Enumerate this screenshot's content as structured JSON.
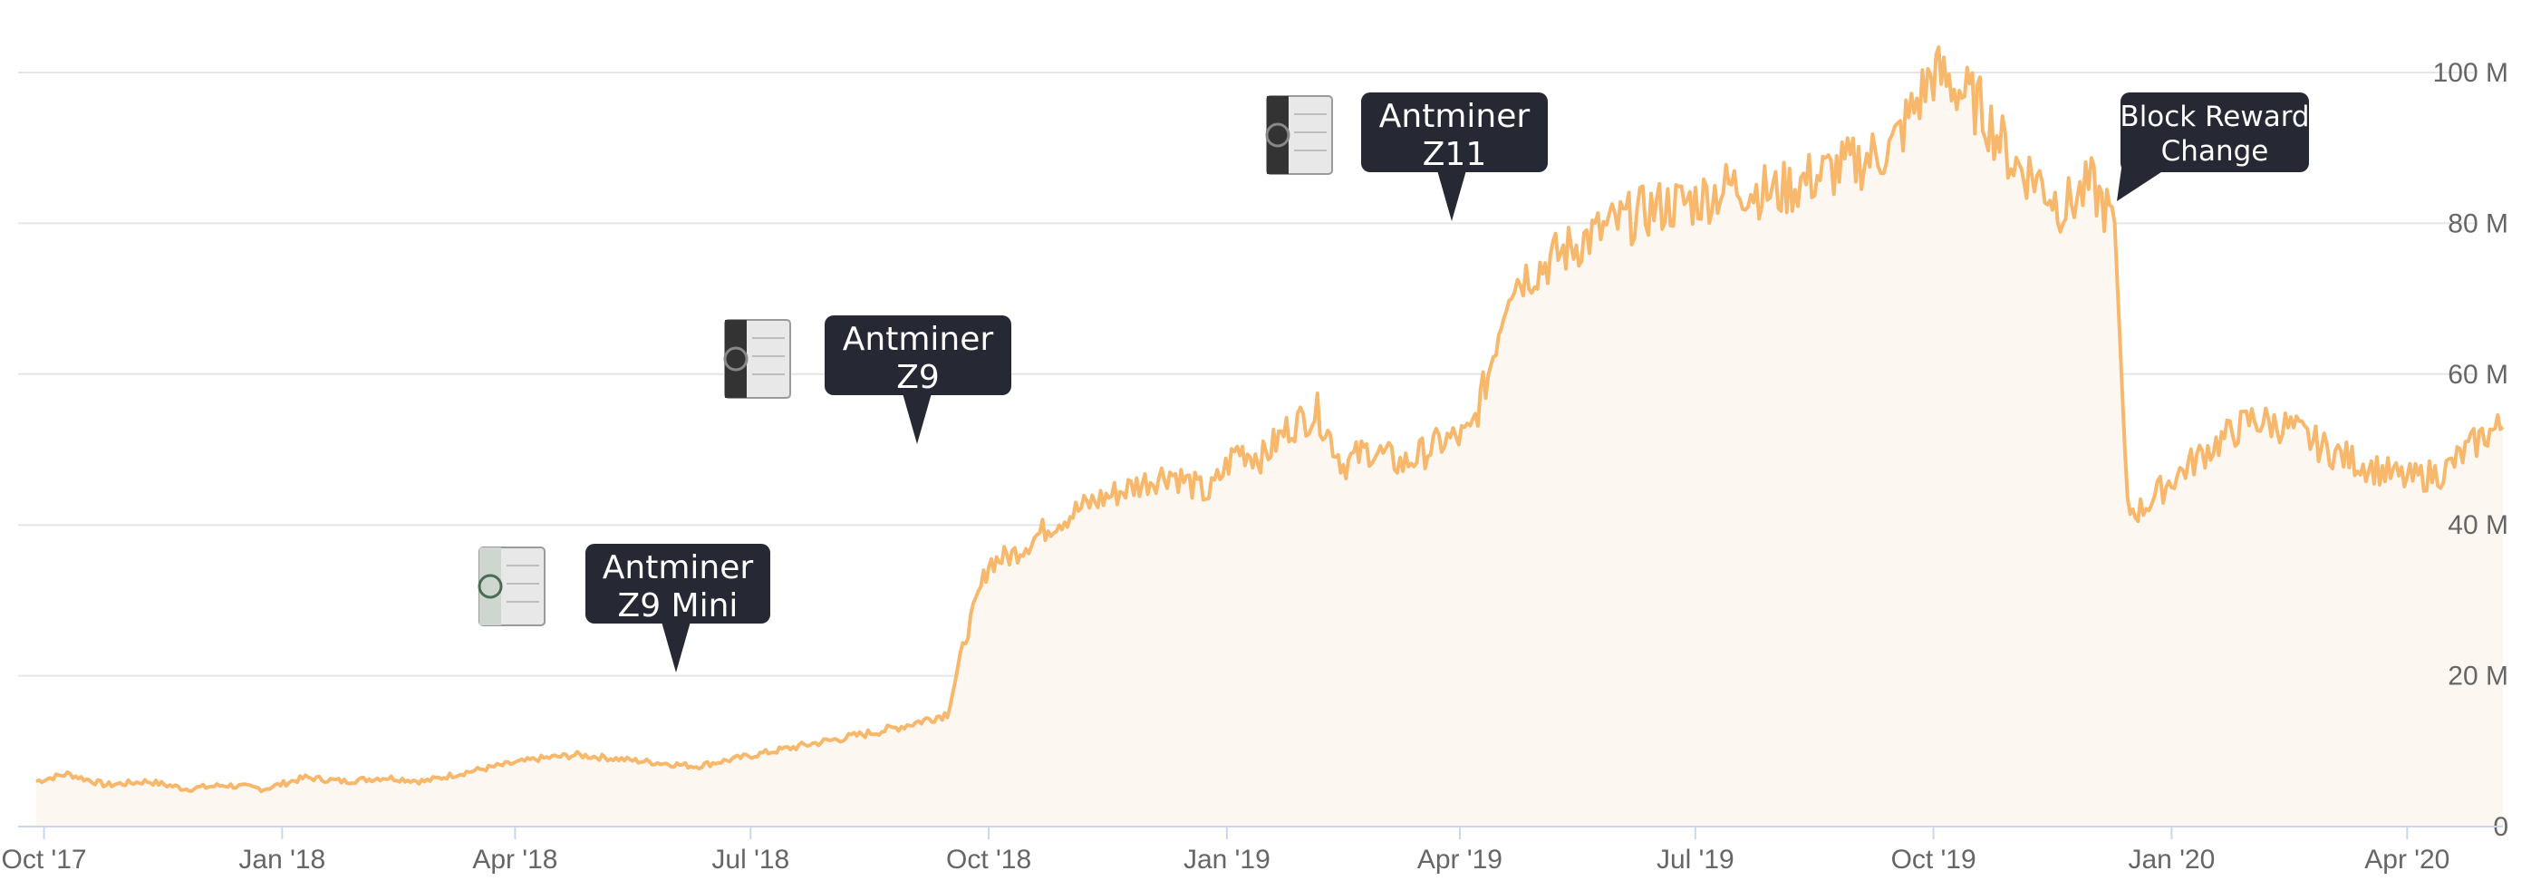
{
  "chart_data": {
    "type": "area",
    "title": "",
    "xlabel": "",
    "ylabel": "",
    "ylim": [
      0,
      100000000
    ],
    "grid": true,
    "line_color": "#f7b86b",
    "fill_color": "#fdf7f2",
    "y_ticks": [
      {
        "value": 0,
        "label": "0"
      },
      {
        "value": 20000000,
        "label": "20 M"
      },
      {
        "value": 40000000,
        "label": "40 M"
      },
      {
        "value": 60000000,
        "label": "60 M"
      },
      {
        "value": 80000000,
        "label": "80 M"
      },
      {
        "value": 100000000,
        "label": "100 M"
      }
    ],
    "x_ticks": [
      {
        "date": "2017-10-01",
        "label": "Oct '17"
      },
      {
        "date": "2018-01-01",
        "label": "Jan '18"
      },
      {
        "date": "2018-04-01",
        "label": "Apr '18"
      },
      {
        "date": "2018-07-01",
        "label": "Jul '18"
      },
      {
        "date": "2018-10-01",
        "label": "Oct '18"
      },
      {
        "date": "2019-01-01",
        "label": "Jan '19"
      },
      {
        "date": "2019-04-01",
        "label": "Apr '19"
      },
      {
        "date": "2019-07-01",
        "label": "Jul '19"
      },
      {
        "date": "2019-10-01",
        "label": "Oct '19"
      },
      {
        "date": "2020-01-01",
        "label": "Jan '20"
      },
      {
        "date": "2020-04-01",
        "label": "Apr '20"
      }
    ],
    "series": [
      {
        "x": [
          "2017-09-28",
          "2017-10-10",
          "2017-10-25",
          "2017-11-10",
          "2017-11-25",
          "2017-12-10",
          "2017-12-25",
          "2018-01-10",
          "2018-01-25",
          "2018-02-10",
          "2018-02-25",
          "2018-03-10",
          "2018-03-25",
          "2018-04-10",
          "2018-04-25",
          "2018-05-10",
          "2018-05-25",
          "2018-06-10",
          "2018-06-25",
          "2018-07-10",
          "2018-07-25",
          "2018-08-10",
          "2018-08-25",
          "2018-09-05",
          "2018-09-15",
          "2018-09-22",
          "2018-10-01",
          "2018-10-10",
          "2018-10-25",
          "2018-11-10",
          "2018-11-25",
          "2018-12-10",
          "2018-12-25",
          "2019-01-05",
          "2019-01-15",
          "2019-01-25",
          "2019-02-05",
          "2019-02-15",
          "2019-02-25",
          "2019-03-10",
          "2019-03-25",
          "2019-04-05",
          "2019-04-12",
          "2019-04-20",
          "2019-05-01",
          "2019-05-10",
          "2019-05-20",
          "2019-06-01",
          "2019-06-15",
          "2019-07-01",
          "2019-07-15",
          "2019-08-01",
          "2019-08-15",
          "2019-09-01",
          "2019-09-15",
          "2019-10-01",
          "2019-10-10",
          "2019-10-20",
          "2019-11-01",
          "2019-11-10",
          "2019-11-20",
          "2019-12-01",
          "2019-12-10",
          "2019-12-15",
          "2019-12-20",
          "2020-01-01",
          "2020-01-15",
          "2020-02-01",
          "2020-02-15",
          "2020-03-01",
          "2020-03-15",
          "2020-04-01",
          "2020-04-15",
          "2020-05-01",
          "2020-05-08"
        ],
        "values": [
          6000000,
          7000000,
          5500000,
          6000000,
          5000000,
          5500000,
          5000000,
          6500000,
          6000000,
          6500000,
          6000000,
          7000000,
          8000000,
          9000000,
          9500000,
          9000000,
          8500000,
          8000000,
          9000000,
          10000000,
          11000000,
          12000000,
          13000000,
          14000000,
          15000000,
          25000000,
          35000000,
          36000000,
          40000000,
          43000000,
          45000000,
          47000000,
          44000000,
          50000000,
          49000000,
          53000000,
          55000000,
          48000000,
          50000000,
          48000000,
          51000000,
          52000000,
          60000000,
          72000000,
          74000000,
          76000000,
          78000000,
          80000000,
          82000000,
          83000000,
          85000000,
          84000000,
          86000000,
          88000000,
          90000000,
          100000000,
          98000000,
          95000000,
          88000000,
          86000000,
          82000000,
          85000000,
          80000000,
          42000000,
          42000000,
          46000000,
          50000000,
          54000000,
          53000000,
          50000000,
          48000000,
          46000000,
          47000000,
          52000000,
          53000000
        ]
      }
    ],
    "annotations": [
      {
        "date": "2018-06-10",
        "value": 20000000,
        "text_lines": [
          "Antminer",
          "Z9 Mini"
        ],
        "icon": "antminer-z9-mini-image"
      },
      {
        "date": "2018-09-01",
        "value": 50000000,
        "text_lines": [
          "Antminer",
          "Z9"
        ],
        "icon": "antminer-z9-image"
      },
      {
        "date": "2019-04-05",
        "value": 80000000,
        "text_lines": [
          "Antminer",
          "Z11"
        ],
        "icon": "antminer-z11-image"
      },
      {
        "date": "2019-12-20",
        "value": 84000000,
        "text_lines": [
          "Block Reward",
          "Change"
        ],
        "icon": ""
      }
    ]
  }
}
